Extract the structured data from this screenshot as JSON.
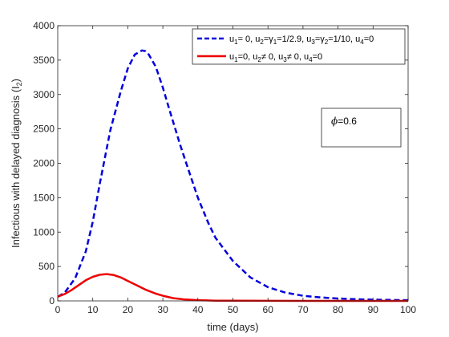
{
  "chart_data": {
    "type": "line",
    "title": "",
    "xlabel": "time (days)",
    "ylabel": "Infectious with delayed diagnosis (I",
    "ylabel_sub": "2",
    "ylabel_close": ")",
    "xlim": [
      0,
      100
    ],
    "ylim": [
      0,
      4000
    ],
    "xticks": [
      0,
      10,
      20,
      30,
      40,
      50,
      60,
      70,
      80,
      90,
      100
    ],
    "yticks": [
      0,
      500,
      1000,
      1500,
      2000,
      2500,
      3000,
      3500,
      4000
    ],
    "grid": false,
    "legend_position": "top-right",
    "annotation": {
      "symbol": "ϕ",
      "text": "=0.6"
    },
    "series": [
      {
        "name": "u1= 0, u2=γ1=1/2.9, u3=γ2=1/10, u4=0",
        "color": "#0000dd",
        "style": "dashed",
        "legend_parts": [
          {
            "t": "u"
          },
          {
            "t": "1",
            "sub": true
          },
          {
            "t": "= 0, u"
          },
          {
            "t": "2",
            "sub": true
          },
          {
            "t": "=γ"
          },
          {
            "t": "1",
            "sub": true
          },
          {
            "t": "=1/2.9, u"
          },
          {
            "t": "3",
            "sub": true
          },
          {
            "t": "=γ"
          },
          {
            "t": "2",
            "sub": true
          },
          {
            "t": "=1/10, u"
          },
          {
            "t": "4",
            "sub": true
          },
          {
            "t": "=0"
          }
        ],
        "x": [
          0,
          2,
          5,
          8,
          10,
          12,
          15,
          18,
          20,
          22,
          24,
          25,
          26,
          28,
          30,
          32,
          35,
          38,
          40,
          43,
          45,
          50,
          55,
          60,
          65,
          70,
          75,
          80,
          85,
          90,
          95,
          100
        ],
        "y": [
          60,
          120,
          330,
          720,
          1150,
          1700,
          2480,
          3050,
          3380,
          3580,
          3640,
          3630,
          3580,
          3400,
          3100,
          2760,
          2260,
          1800,
          1500,
          1130,
          920,
          580,
          340,
          200,
          120,
          75,
          50,
          35,
          25,
          18,
          14,
          10
        ]
      },
      {
        "name": "u1=0, u2≠ 0, u3≠ 0, u4=0",
        "color": "#ee0000",
        "style": "solid",
        "legend_parts": [
          {
            "t": "u"
          },
          {
            "t": "1",
            "sub": true
          },
          {
            "t": "=0, u"
          },
          {
            "t": "2",
            "sub": true
          },
          {
            "t": "≠ 0, u"
          },
          {
            "t": "3",
            "sub": true
          },
          {
            "t": "≠ 0, u"
          },
          {
            "t": "4",
            "sub": true
          },
          {
            "t": "=0"
          }
        ],
        "x": [
          0,
          2,
          4,
          6,
          8,
          10,
          12,
          14,
          16,
          18,
          20,
          22,
          25,
          28,
          30,
          33,
          36,
          40,
          45,
          50,
          60,
          70,
          80,
          90,
          100
        ],
        "y": [
          60,
          100,
          160,
          230,
          300,
          350,
          380,
          390,
          375,
          340,
          290,
          240,
          165,
          105,
          75,
          40,
          22,
          10,
          4,
          2,
          1,
          0,
          0,
          0,
          0
        ]
      }
    ]
  }
}
